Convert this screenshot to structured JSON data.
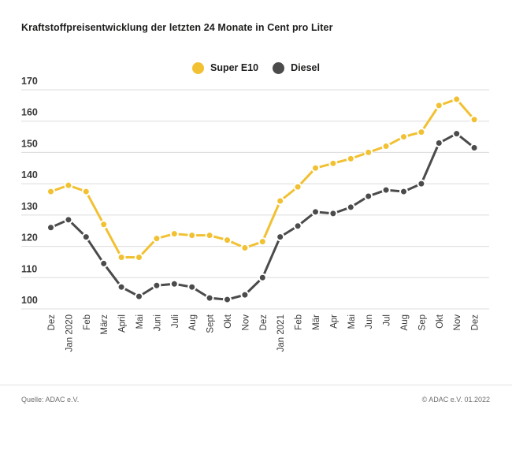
{
  "title": "Kraftstoffpreisentwicklung der letzten 24 Monate in Cent pro Liter",
  "legend": [
    {
      "label": "Super E10",
      "color": "#F1C132"
    },
    {
      "label": "Diesel",
      "color": "#4B4B4B"
    }
  ],
  "footer": {
    "source": "Quelle: ADAC e.V.",
    "copyright": "© ADAC e.V. 01.2022"
  },
  "colors": {
    "grid": "#dcdcdc",
    "axis_text": "#3a3a3a",
    "background": "#ffffff"
  },
  "chart_data": {
    "type": "line",
    "title": "Kraftstoffpreisentwicklung der letzten 24 Monate in Cent pro Liter",
    "xlabel": "",
    "ylabel": "Cent pro Liter",
    "ylim": [
      100,
      170
    ],
    "yticks": [
      100,
      110,
      120,
      130,
      140,
      150,
      160,
      170
    ],
    "grid": true,
    "legend_position": "top-center",
    "categories": [
      "Dez",
      "Jan 2020",
      "Feb",
      "März",
      "April",
      "Mai",
      "Juni",
      "Juli",
      "Aug",
      "Sept",
      "Okt",
      "Nov",
      "Dez",
      "Jan 2021",
      "Feb",
      "Mär",
      "Apr",
      "Mai",
      "Jun",
      "Jul",
      "Aug",
      "Sep",
      "Okt",
      "Nov",
      "Dez"
    ],
    "series": [
      {
        "name": "Super E10",
        "color": "#F1C132",
        "values": [
          137.5,
          139.5,
          137.5,
          127,
          116.5,
          116.5,
          122.5,
          124,
          123.5,
          123.5,
          122,
          119.5,
          121.5,
          134.5,
          139,
          145,
          146.5,
          148,
          150,
          152,
          155,
          156.5,
          165,
          167,
          160.5
        ]
      },
      {
        "name": "Diesel",
        "color": "#4B4B4B",
        "values": [
          126,
          128.5,
          123,
          114.5,
          107,
          104,
          107.5,
          108,
          107,
          103.5,
          103,
          104.5,
          110,
          123,
          126.5,
          131,
          130.5,
          132.5,
          136,
          138,
          137.5,
          140,
          153,
          156,
          151.5
        ]
      }
    ]
  }
}
